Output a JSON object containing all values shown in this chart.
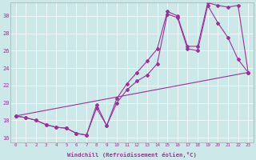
{
  "xlabel": "Windchill (Refroidissement éolien,°C)",
  "bg_color": "#cde8e8",
  "line_color": "#993399",
  "xlim": [
    -0.5,
    23.5
  ],
  "ylim": [
    15.5,
    31.5
  ],
  "yticks": [
    16,
    18,
    20,
    22,
    24,
    26,
    28,
    30
  ],
  "xticks": [
    0,
    1,
    2,
    3,
    4,
    5,
    6,
    7,
    8,
    9,
    10,
    11,
    12,
    13,
    14,
    15,
    16,
    17,
    18,
    19,
    20,
    21,
    22,
    23
  ],
  "line1_x": [
    0,
    1,
    2,
    3,
    4,
    5,
    6,
    7,
    8,
    9,
    10,
    11,
    12,
    13,
    14,
    15,
    16,
    17,
    18,
    19,
    20,
    21,
    22,
    23
  ],
  "line1_y": [
    18.5,
    18.3,
    18.0,
    17.5,
    17.2,
    17.1,
    16.5,
    16.3,
    19.8,
    17.4,
    20.0,
    21.5,
    22.5,
    23.2,
    24.5,
    30.2,
    29.8,
    26.2,
    26.0,
    31.2,
    29.2,
    27.5,
    25.0,
    23.5
  ],
  "line2_x": [
    0,
    1,
    2,
    3,
    4,
    5,
    6,
    7,
    8,
    9,
    10,
    11,
    12,
    13,
    14,
    15,
    16,
    17,
    18,
    19,
    20,
    21,
    22,
    23
  ],
  "line2_y": [
    18.5,
    18.3,
    18.0,
    17.5,
    17.2,
    17.1,
    16.5,
    16.3,
    19.4,
    17.4,
    20.5,
    22.2,
    23.5,
    24.8,
    26.2,
    30.5,
    30.0,
    26.5,
    26.5,
    31.5,
    31.2,
    31.0,
    31.2,
    23.5
  ],
  "line3_x": [
    0,
    23
  ],
  "line3_y": [
    18.5,
    23.5
  ]
}
